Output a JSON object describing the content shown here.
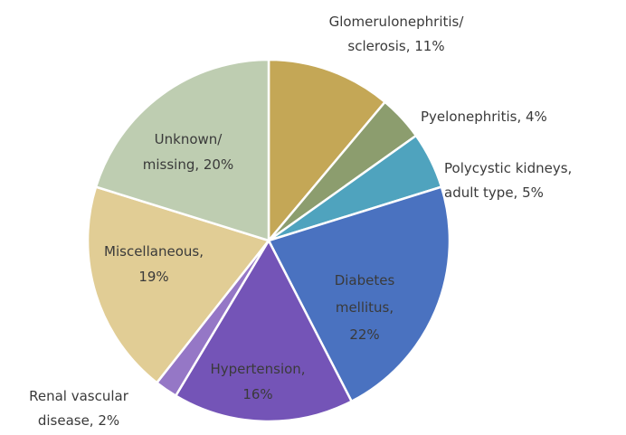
{
  "chart_data": {
    "type": "pie",
    "slices": [
      {
        "label_lines": [
          "Glomerulonephritis/",
          "sclerosis, 11%"
        ],
        "value": 11,
        "color": "#C4A756",
        "label_position": "outside"
      },
      {
        "label_lines": [
          "Pyelonephritis, 4%"
        ],
        "value": 4,
        "color": "#8C9D6E",
        "label_position": "outside"
      },
      {
        "label_lines": [
          "Polycystic kidneys,",
          "adult type, 5%"
        ],
        "value": 5,
        "color": "#4FA3BE",
        "label_position": "outside"
      },
      {
        "label_lines": [
          "Diabetes",
          "mellitus,",
          "22%"
        ],
        "value": 22,
        "color": "#4A72C0",
        "label_position": "inside"
      },
      {
        "label_lines": [
          "Hypertension,",
          "16%"
        ],
        "value": 16,
        "color": "#7454B7",
        "label_position": "inside"
      },
      {
        "label_lines": [
          "Renal vascular",
          "disease, 2%"
        ],
        "value": 2,
        "color": "#9577C6",
        "label_position": "outside"
      },
      {
        "label_lines": [
          "Miscellaneous,",
          "19%"
        ],
        "value": 19,
        "color": "#E1CD95",
        "label_position": "inside"
      },
      {
        "label_lines": [
          "Unknown/",
          "missing, 20%"
        ],
        "value": 20,
        "color": "#BECDB1",
        "label_position": "inside"
      }
    ],
    "start_angle": "12 o'clock",
    "direction": "clockwise",
    "legend": "none"
  }
}
